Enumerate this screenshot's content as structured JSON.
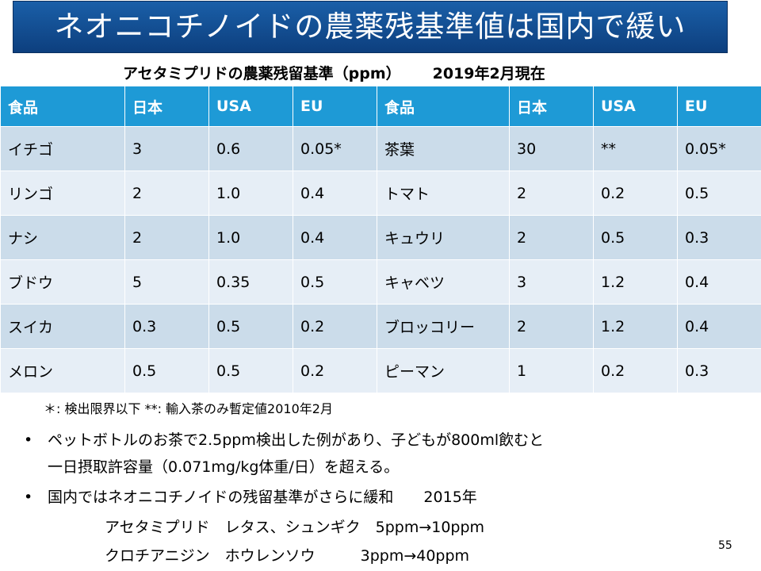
{
  "title": "ネオニコチノイドの農薬残基準値は国内で緩い",
  "caption": {
    "label": "アセタミプリドの農薬残留基準（ppm）",
    "date": "2019年2月現在"
  },
  "table": {
    "headers": [
      "食品",
      "日本",
      "USA",
      "EU",
      "食品",
      "日本",
      "USA",
      "EU"
    ],
    "rows": [
      [
        "イチゴ",
        "3",
        "0.6",
        "0.05*",
        "茶葉",
        "30",
        "**",
        "0.05*"
      ],
      [
        "リンゴ",
        "2",
        "1.0",
        "0.4",
        "トマト",
        "2",
        "0.2",
        "0.5"
      ],
      [
        "ナシ",
        "2",
        "1.0",
        "0.4",
        "キュウリ",
        "2",
        "0.5",
        "0.3"
      ],
      [
        "ブドウ",
        "5",
        "0.35",
        "0.5",
        "キャベツ",
        "3",
        "1.2",
        "0.4"
      ],
      [
        "スイカ",
        "0.3",
        "0.5",
        "0.2",
        "ブロッコリー",
        "2",
        "1.2",
        "0.4"
      ],
      [
        "メロン",
        "0.5",
        "0.5",
        "0.2",
        "ピーマン",
        "1",
        "0.2",
        "0.3"
      ]
    ]
  },
  "footnote": "＊: 検出限界以下  **:  輸入茶のみ暫定値2010年2月",
  "bullets": [
    {
      "marker": "•",
      "line1": "ペットボトルのお茶で2.5ppm検出した例があり、子どもが800ml飲むと",
      "line2": "一日摂取許容量（0.071mg/kg体重/日）を超える。"
    },
    {
      "marker": "•",
      "line1": "国内ではネオニコチノイドの残留基準がさらに緩和　　2015年"
    }
  ],
  "sub_items": [
    "アセタミプリド　レタス、シュンギク　5ppm→10ppm",
    "クロチアニジン　ホウレンソウ　　　3ppm→40ppm"
  ],
  "page_number": "55"
}
